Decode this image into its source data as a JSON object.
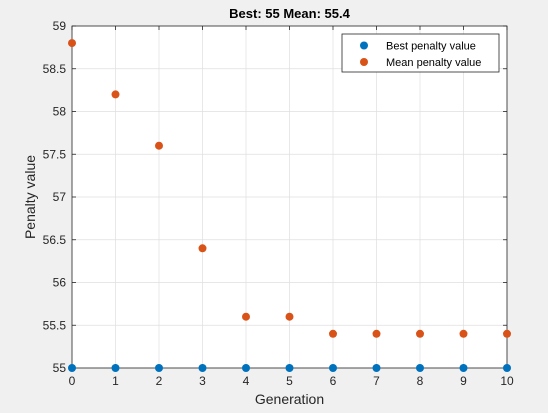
{
  "chart_data": {
    "type": "scatter",
    "title": "Best: 55 Mean: 55.4",
    "xlabel": "Generation",
    "ylabel": "Penalty value",
    "xlim": [
      0,
      10
    ],
    "ylim": [
      55,
      59
    ],
    "x_ticks": [
      "0",
      "1",
      "2",
      "3",
      "4",
      "5",
      "6",
      "7",
      "8",
      "9",
      "10"
    ],
    "y_ticks": [
      "55",
      "55.5",
      "56",
      "56.5",
      "57",
      "57.5",
      "58",
      "58.5",
      "59"
    ],
    "grid": true,
    "legend_position": "top-right",
    "x": [
      0,
      1,
      2,
      3,
      4,
      5,
      6,
      7,
      8,
      9,
      10
    ],
    "series": [
      {
        "name": "Best penalty value",
        "color": "#0072bd",
        "values": [
          55,
          55,
          55,
          55,
          55,
          55,
          55,
          55,
          55,
          55,
          55
        ]
      },
      {
        "name": "Mean penalty value",
        "color": "#d95319",
        "values": [
          58.8,
          58.2,
          57.6,
          56.4,
          55.6,
          55.6,
          55.4,
          55.4,
          55.4,
          55.4,
          55.4
        ]
      }
    ]
  }
}
